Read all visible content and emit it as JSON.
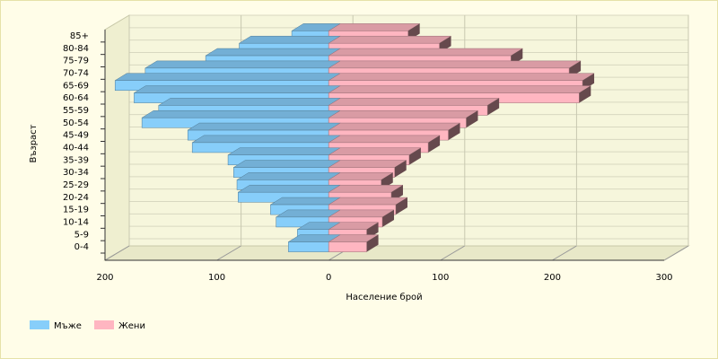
{
  "chart_data": {
    "type": "pyramid",
    "x_label": "Население брой",
    "y_label": "Възраст",
    "categories": [
      "0-4",
      "5-9",
      "10-14",
      "15-19",
      "20-24",
      "25-29",
      "30-34",
      "35-39",
      "40-44",
      "45-49",
      "50-54",
      "55-59",
      "60-64",
      "65-69",
      "70-74",
      "75-79",
      "80-84",
      "85+"
    ],
    "series": [
      {
        "name": "Мъже",
        "color": "#87cefa",
        "values": [
          -36,
          -28,
          -47,
          -52,
          -81,
          -82,
          -85,
          -90,
          -122,
          -126,
          -167,
          -152,
          -174,
          -191,
          -164,
          -110,
          -80,
          -33
        ]
      },
      {
        "name": "Жени",
        "color": "#ffb6c1",
        "values": [
          34,
          34,
          48,
          60,
          56,
          47,
          59,
          72,
          89,
          107,
          123,
          142,
          224,
          227,
          215,
          163,
          99,
          71
        ]
      }
    ],
    "xlim": [
      -200,
      300
    ],
    "xticks": [
      {
        "value": -200,
        "label": "200"
      },
      {
        "value": -100,
        "label": "100"
      },
      0,
      100,
      200,
      300
    ],
    "grid": true,
    "legend": "bottom-left"
  }
}
